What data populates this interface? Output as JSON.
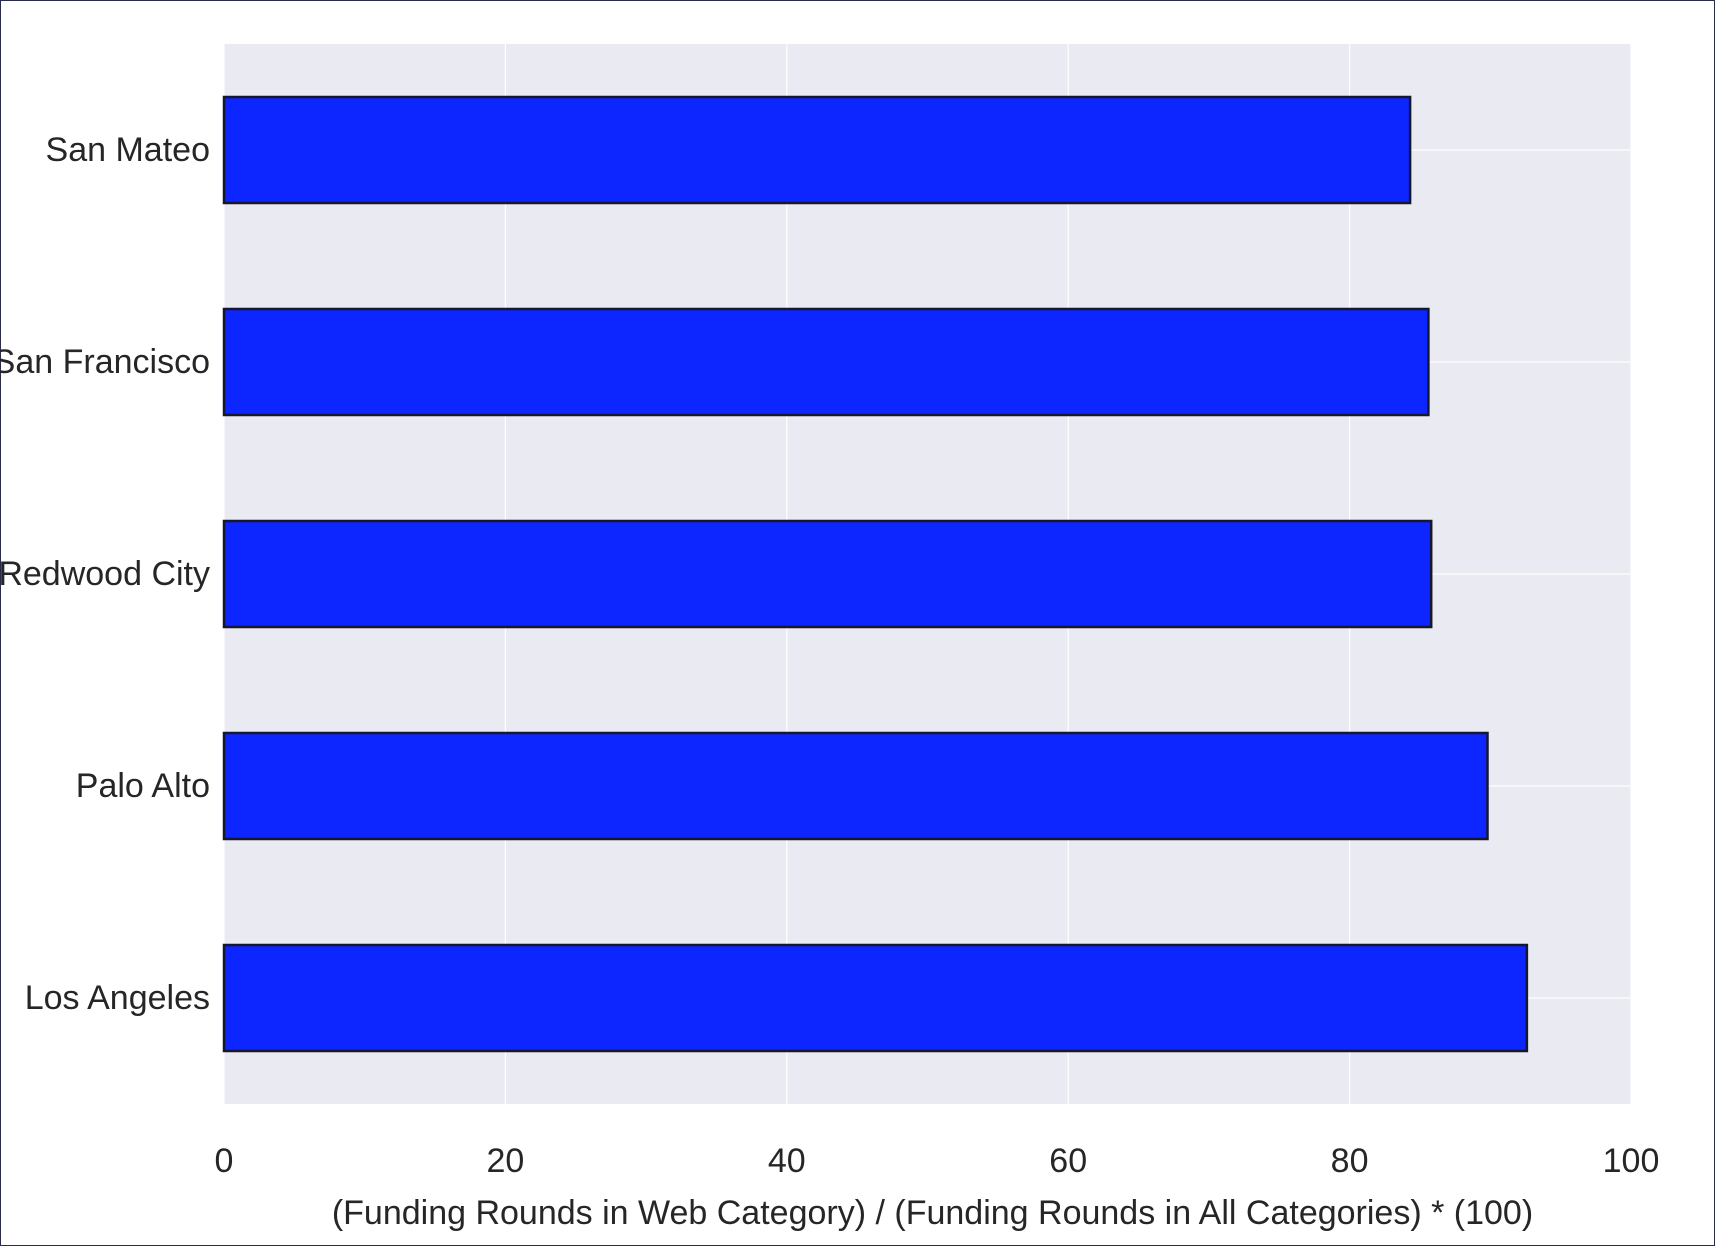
{
  "chart_data": {
    "type": "bar",
    "orientation": "horizontal",
    "categories": [
      "Los Angeles",
      "Palo Alto",
      "Redwood City",
      "San Francisco",
      "San Mateo"
    ],
    "values": [
      92.6,
      89.8,
      85.8,
      85.6,
      84.3
    ],
    "xlabel": "(Funding Rounds in Web Category) / (Funding Rounds in All Categories) * (100)",
    "ylabel": "",
    "xlim": [
      0,
      100
    ],
    "xticks": [
      0,
      20,
      40,
      60,
      80,
      100
    ],
    "grid": true,
    "colors": {
      "bar_fill": "#0d25ff",
      "bar_edge": "#15172e",
      "plot_background": "#eaeaf2",
      "grid": "#ffffff",
      "text": "#262626"
    }
  }
}
